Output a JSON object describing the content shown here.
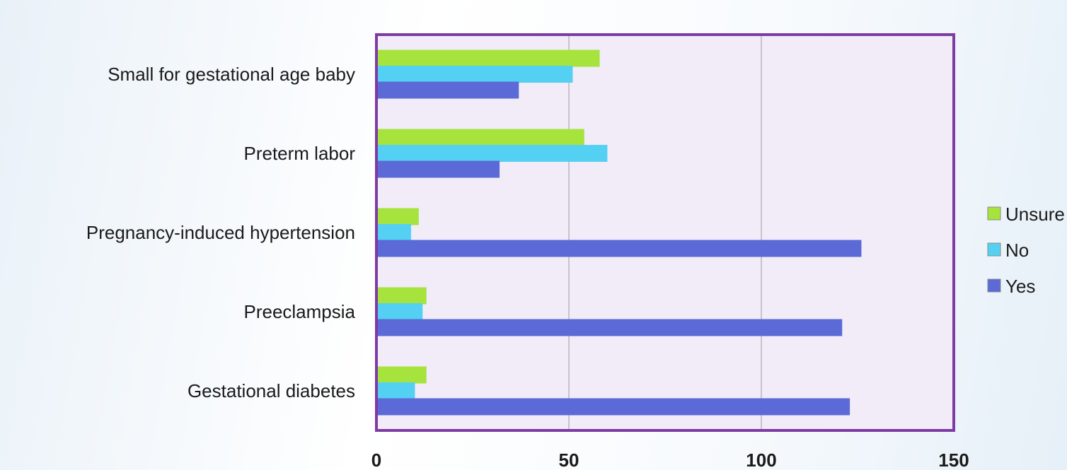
{
  "chart_data": {
    "type": "bar",
    "orientation": "horizontal",
    "categories": [
      "Small for gestational age baby",
      "Preterm labor",
      "Pregnancy-induced hypertension",
      "Preeclampsia",
      "Gestational diabetes"
    ],
    "series": [
      {
        "name": "Unsure",
        "color": "#a6e33c",
        "values": [
          58,
          54,
          11,
          13,
          13
        ]
      },
      {
        "name": "No",
        "color": "#54d0f2",
        "values": [
          51,
          60,
          9,
          12,
          10
        ]
      },
      {
        "name": "Yes",
        "color": "#5b6ad6",
        "values": [
          37,
          32,
          126,
          121,
          123
        ]
      }
    ],
    "xlim": [
      0,
      150
    ],
    "xticks": [
      "0",
      "50",
      "100",
      "150"
    ],
    "grid": true,
    "legend_position": "right",
    "plot_background": "#f1ecf7",
    "frame_color": "#7d3ba3",
    "title": "",
    "xlabel": "",
    "ylabel": ""
  }
}
